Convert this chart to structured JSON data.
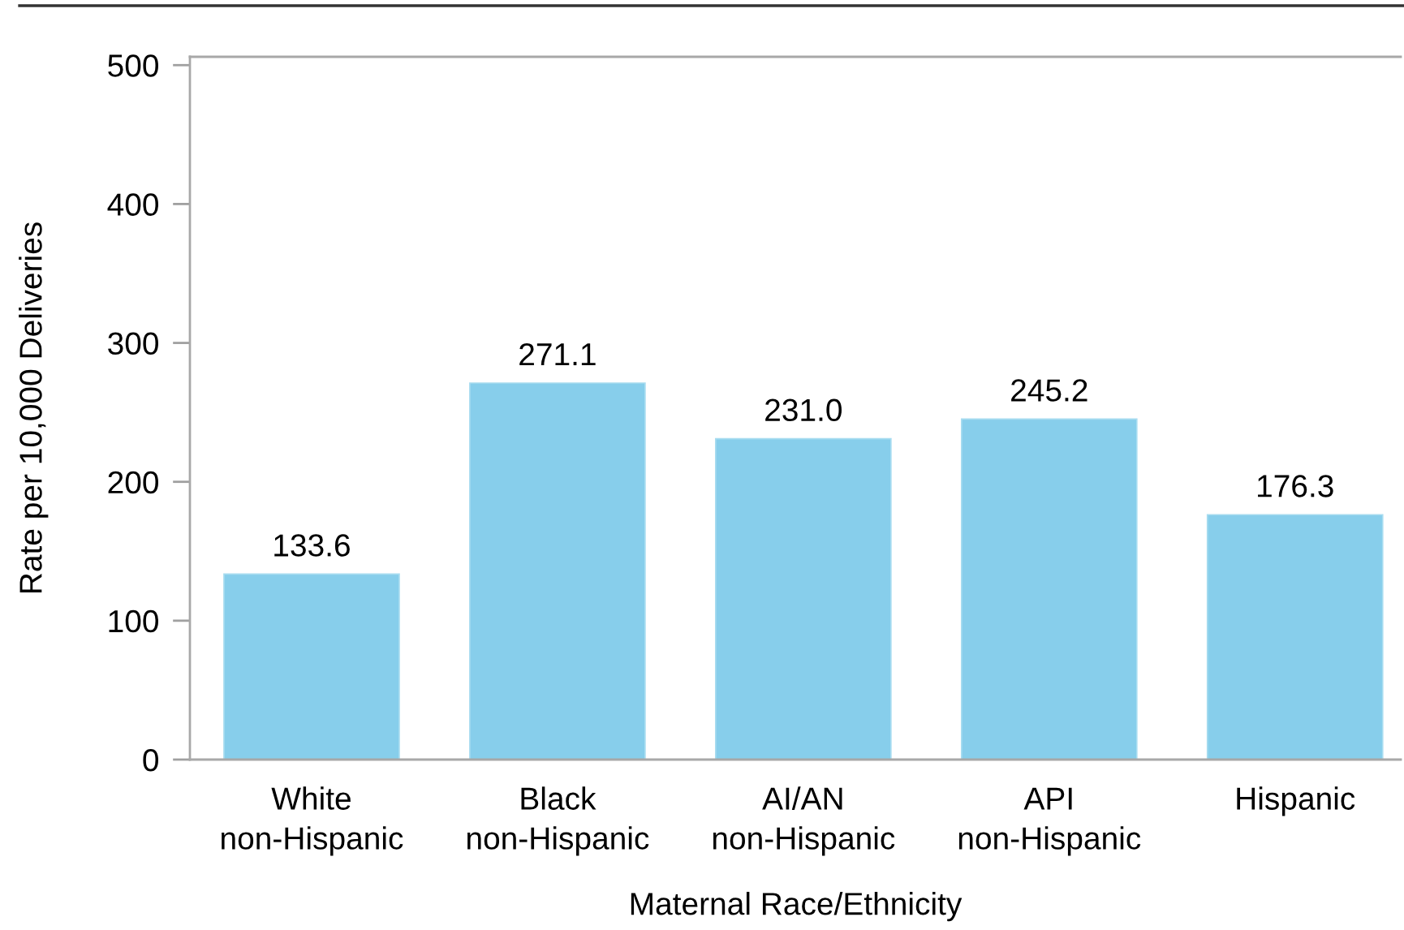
{
  "chart_data": {
    "type": "bar",
    "xlabel": "Maternal Race/Ethnicity",
    "ylabel": "Rate per 10,000 Deliveries",
    "categories": [
      "White\nnon-Hispanic",
      "Black\nnon-Hispanic",
      "AI/AN\nnon-Hispanic",
      "API\nnon-Hispanic",
      "Hispanic"
    ],
    "values": [
      133.6,
      271.1,
      231.0,
      245.2,
      176.3
    ],
    "value_labels": [
      "133.6",
      "271.1",
      "231.0",
      "245.2",
      "176.3"
    ],
    "color": "#87ceeb",
    "ylim": [
      0,
      506
    ],
    "yticks": [
      0,
      100,
      200,
      300,
      400,
      500
    ],
    "grid": false,
    "legend": false
  }
}
